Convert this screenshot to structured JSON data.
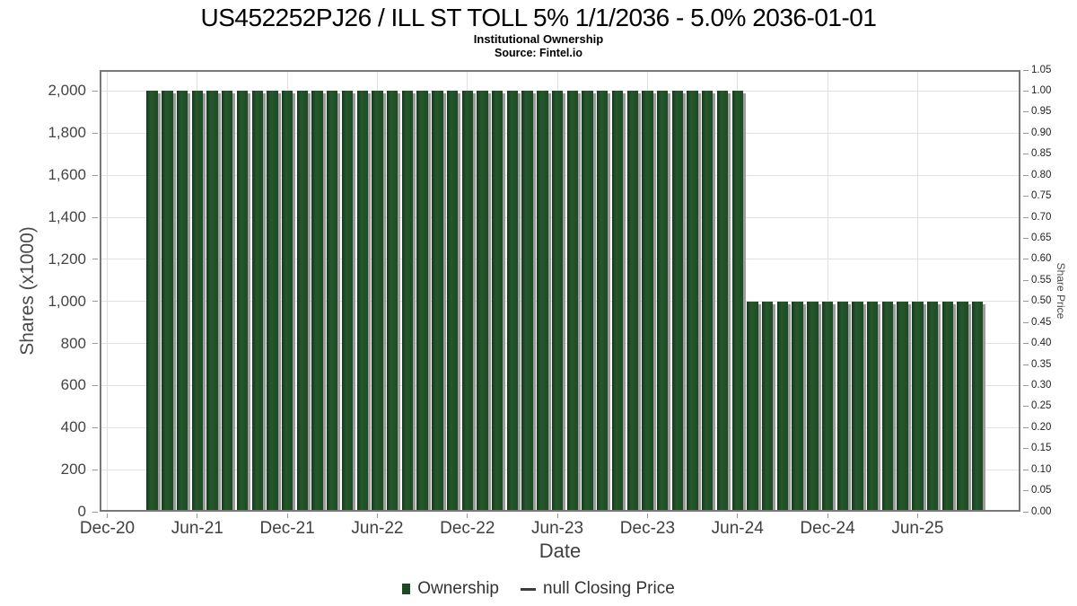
{
  "header": {
    "title": "US452252PJ26 / ILL ST TOLL 5% 1/1/2036 - 5.0% 2036-01-01",
    "subtitle": "Institutional Ownership",
    "source": "Source: Fintel.io"
  },
  "legend": {
    "ownership_label": "Ownership",
    "price_label": "null Closing Price"
  },
  "chart_data": {
    "type": "bar",
    "title": "US452252PJ26 / ILL ST TOLL 5% 1/1/2036 - 5.0% 2036-01-01",
    "subtitle": "Institutional Ownership",
    "source": "Source: Fintel.io",
    "xlabel": "Date",
    "ylabel_left": "Shares (x1000)",
    "ylabel_right": "Share Price",
    "ylim_left": [
      0,
      2100
    ],
    "ylim_right": [
      0,
      1.05
    ],
    "grid": true,
    "legend_position": "bottom-center",
    "bar_color": "#1d4a23",
    "x_tick_labels": [
      "Dec-20",
      "Jun-21",
      "Dec-21",
      "Jun-22",
      "Dec-22",
      "Jun-23",
      "Dec-23",
      "Jun-24",
      "Dec-24",
      "Jun-25"
    ],
    "y_tick_labels_left": [
      "0",
      "200",
      "400",
      "600",
      "800",
      "1,000",
      "1,200",
      "1,400",
      "1,600",
      "1,800",
      "2,000"
    ],
    "y_tick_labels_right": [
      "0.00",
      "0.05",
      "0.10",
      "0.15",
      "0.20",
      "0.25",
      "0.30",
      "0.35",
      "0.40",
      "0.45",
      "0.50",
      "0.55",
      "0.60",
      "0.65",
      "0.70",
      "0.75",
      "0.80",
      "0.85",
      "0.90",
      "0.95",
      "1.00",
      "1.05"
    ],
    "series": [
      {
        "name": "Ownership",
        "unit": "shares x1000"
      },
      {
        "name": "null Closing Price",
        "values": null
      }
    ],
    "x": [
      "Mar-21",
      "Apr-21",
      "May-21",
      "Jun-21",
      "Jul-21",
      "Aug-21",
      "Sep-21",
      "Oct-21",
      "Nov-21",
      "Dec-21",
      "Jan-22",
      "Feb-22",
      "Mar-22",
      "Apr-22",
      "May-22",
      "Jun-22",
      "Jul-22",
      "Aug-22",
      "Sep-22",
      "Oct-22",
      "Nov-22",
      "Dec-22",
      "Jan-23",
      "Feb-23",
      "Mar-23",
      "Apr-23",
      "May-23",
      "Jun-23",
      "Jul-23",
      "Aug-23",
      "Sep-23",
      "Oct-23",
      "Nov-23",
      "Dec-23",
      "Jan-24",
      "Feb-24",
      "Mar-24",
      "Apr-24",
      "May-24",
      "Jun-24",
      "Jul-24",
      "Aug-24",
      "Sep-24",
      "Oct-24",
      "Nov-24",
      "Dec-24",
      "Jan-25",
      "Feb-25",
      "Mar-25",
      "Apr-25",
      "May-25",
      "Jun-25",
      "Jul-25",
      "Aug-25",
      "Sep-25",
      "Oct-25"
    ],
    "values": [
      2000,
      2000,
      2000,
      2000,
      2000,
      2000,
      2000,
      2000,
      2000,
      2000,
      2000,
      2000,
      2000,
      2000,
      2000,
      2000,
      2000,
      2000,
      2000,
      2000,
      2000,
      2000,
      2000,
      2000,
      2000,
      2000,
      2000,
      2000,
      2000,
      2000,
      2000,
      2000,
      2000,
      2000,
      2000,
      2000,
      2000,
      2000,
      2000,
      2000,
      1000,
      1000,
      1000,
      1000,
      1000,
      1000,
      1000,
      1000,
      1000,
      1000,
      1000,
      1000,
      1000,
      1000,
      1000,
      1000
    ]
  }
}
